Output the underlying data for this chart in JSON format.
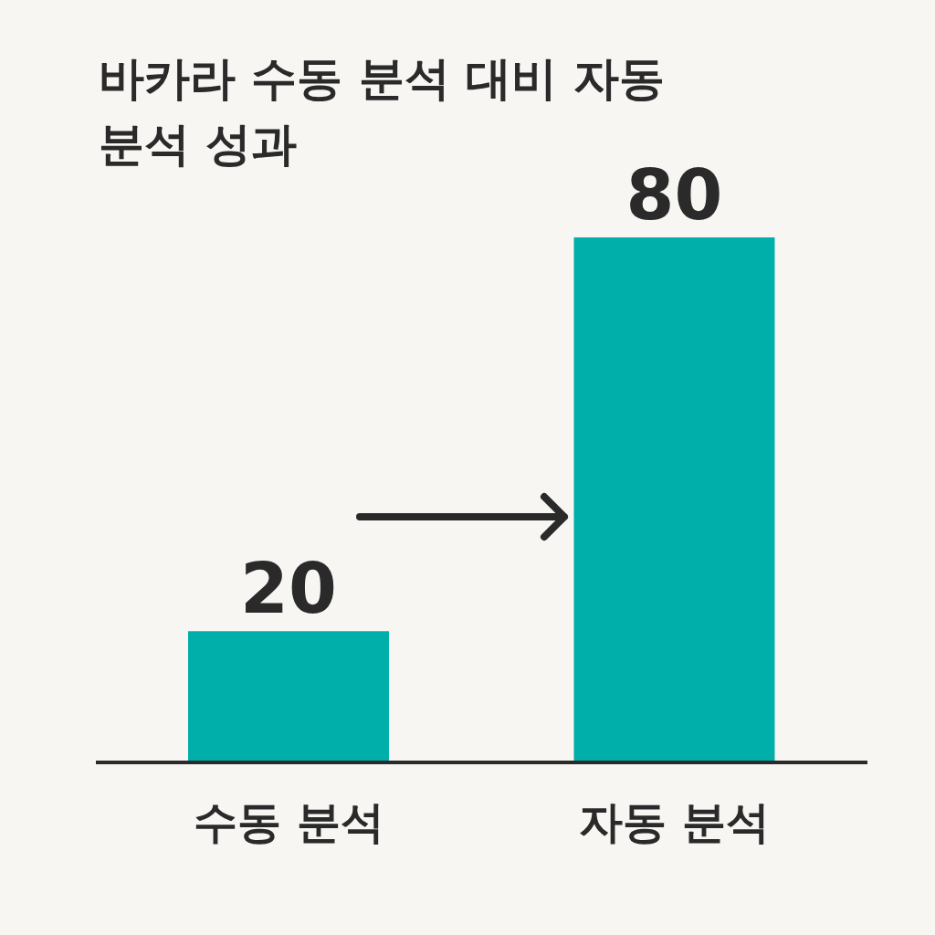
{
  "chart_data": {
    "type": "bar",
    "title": "바카라 수동 분석 대비 자동 분석 성과",
    "categories": [
      "수동 분석",
      "자동 분석"
    ],
    "values": [
      20,
      80
    ],
    "color": "#00afaa",
    "data_labels": true
  }
}
